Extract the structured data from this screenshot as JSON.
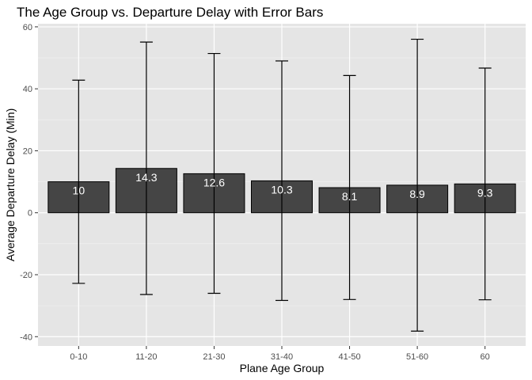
{
  "chart_data": {
    "type": "bar",
    "title": "The Age Group vs. Departure Delay with Error Bars",
    "xlabel": "Plane Age Group",
    "ylabel": "Average Departure Delay (Min)",
    "categories": [
      "0-10",
      "11-20",
      "21-30",
      "31-40",
      "41-50",
      "51-60",
      "60"
    ],
    "values": [
      10,
      14.3,
      12.6,
      10.3,
      8.1,
      8.9,
      9.3
    ],
    "value_labels": [
      "10",
      "14.3",
      "12.6",
      "10.3",
      "8.1",
      "8.9",
      "9.3"
    ],
    "error_upper": [
      42.8,
      55.1,
      51.4,
      49.0,
      44.3,
      56.0,
      46.7
    ],
    "error_lower": [
      -22.8,
      -26.4,
      -26.0,
      -28.3,
      -28.0,
      -38.2,
      -28.1
    ],
    "ylim": [
      -43,
      61
    ],
    "yticks": [
      -40,
      -20,
      0,
      20,
      40,
      60
    ],
    "ytick_labels": [
      "-40",
      "-20",
      "0",
      "20",
      "40",
      "60"
    ],
    "grid": true,
    "legend": "none",
    "colors": {
      "bar_fill": "#454545",
      "bar_stroke": "#000000",
      "panel_background": "#e5e5e5",
      "grid_major": "#ffffff",
      "grid_minor": "#f2f2f2",
      "error_bar": "#000000"
    }
  }
}
